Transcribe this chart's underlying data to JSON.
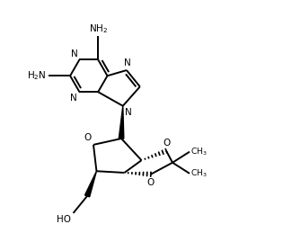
{
  "background": "#ffffff",
  "line_color": "#000000",
  "lw": 1.4,
  "fig_width": 3.15,
  "fig_height": 2.79,
  "dpi": 100,
  "xlim": [
    0,
    9
  ],
  "ylim": [
    0,
    8
  ]
}
